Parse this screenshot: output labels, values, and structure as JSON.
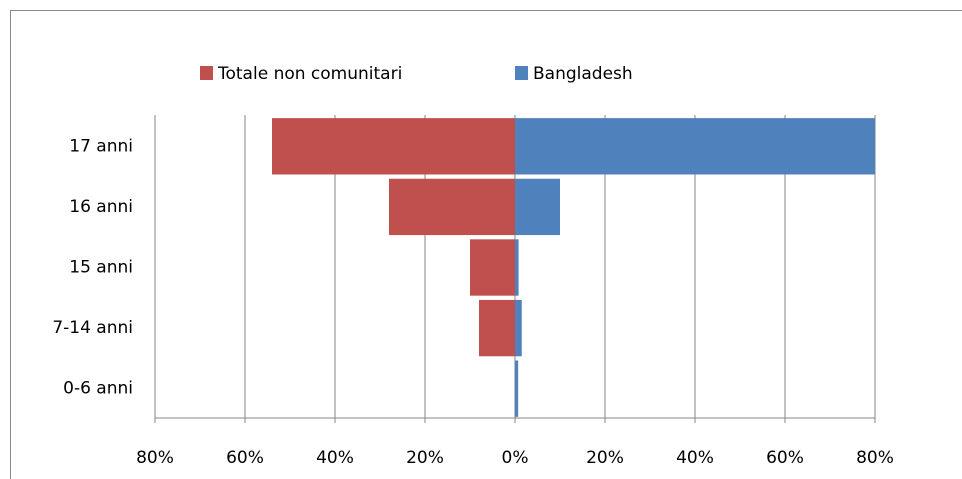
{
  "chart_data": {
    "type": "bar",
    "orientation": "horizontal",
    "categories": [
      "17 anni",
      "16 anni",
      "15 anni",
      "7-14 anni",
      "0-6 anni"
    ],
    "series": [
      {
        "name": "Totale non comunitari",
        "color": "#c0504d",
        "values": [
          -54,
          -28,
          -10,
          -8,
          0
        ]
      },
      {
        "name": "Bangladesh",
        "color": "#4f81bd",
        "values": [
          80,
          10,
          0.8,
          1.5,
          0.7
        ]
      }
    ],
    "xlim": [
      -80,
      80
    ],
    "xticks": [
      {
        "value": -80,
        "label": "80%"
      },
      {
        "value": -60,
        "label": "60%"
      },
      {
        "value": -40,
        "label": "40%"
      },
      {
        "value": -20,
        "label": "20%"
      },
      {
        "value": 0,
        "label": "0%"
      },
      {
        "value": 20,
        "label": "20%"
      },
      {
        "value": 40,
        "label": "40%"
      },
      {
        "value": 60,
        "label": "60%"
      },
      {
        "value": 80,
        "label": "80%"
      }
    ],
    "grid": true,
    "legend": "top"
  }
}
